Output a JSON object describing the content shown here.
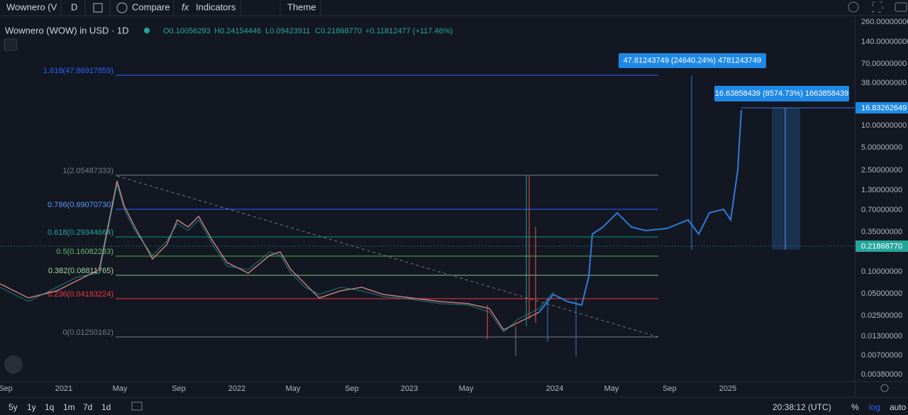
{
  "toolbar": {
    "symbol": "Wownero (V",
    "interval": "D",
    "compare": "Compare",
    "indicators": "Indicators",
    "theme": "Theme"
  },
  "legend": {
    "title": "Wownero (WOW) in USD · 1D",
    "open": "O0.10056293",
    "high": "H0.24154446",
    "low": "L0.09423911",
    "close": "C0.21868770",
    "change": "+0.11812477 (+117.46%)"
  },
  "fib_levels": [
    "1.618(47.86917859)",
    "1(2.05487333)",
    "0.786(0.69070730)",
    "0.618(0.29344664)",
    "0.5(0.16082233)",
    "0.382(0.08811765)",
    "0.236(0.04183224)",
    "0(0.01250162)"
  ],
  "annotations": [
    "47.81243749 (24640.24%) 4781243749",
    "16.63858439 (8574.73%) 1663858439"
  ],
  "price_axis": [
    "260.00000000",
    "140.00000000",
    "70.00000000",
    "38.00000000",
    "10.00000000",
    "5.00000000",
    "2.50000000",
    "1.30000000",
    "0.70000000",
    "0.35000000",
    "0.10000000",
    "0.05000000",
    "0.02500000",
    "0.01300000",
    "0.00700000",
    "0.00380000"
  ],
  "price_tags": [
    "16.83262649",
    "0.21868770"
  ],
  "time_axis": [
    "Sep",
    "2021",
    "May",
    "Sep",
    "2022",
    "May",
    "Sep",
    "2023",
    "May",
    "2024",
    "May",
    "Sep",
    "2025"
  ],
  "bottom_bar": {
    "ranges": [
      "5y",
      "1y",
      "1q",
      "1m",
      "7d",
      "1d"
    ],
    "clock": "20:38:12 (UTC)",
    "percent": "%",
    "log": "log",
    "auto": "auto"
  }
}
